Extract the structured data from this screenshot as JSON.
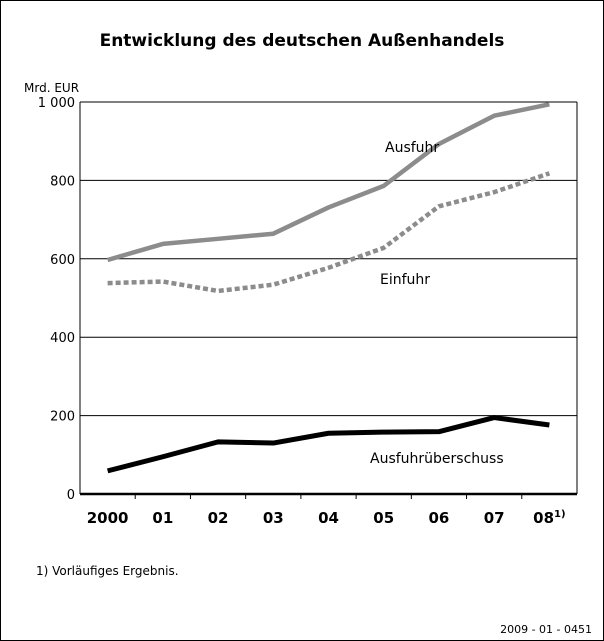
{
  "chart_data": {
    "type": "line",
    "title": "Entwicklung des deutschen Außenhandels",
    "y_axis_label": "Mrd. EUR",
    "categories": [
      "2000",
      "01",
      "02",
      "03",
      "04",
      "05",
      "06",
      "07",
      "08"
    ],
    "category_note": "1)",
    "series": [
      {
        "name": "Ausfuhr",
        "color": "#8c8c8c",
        "style": "solid",
        "values": [
          597,
          638,
          651,
          664,
          731,
          786,
          893,
          965,
          994
        ]
      },
      {
        "name": "Einfuhr",
        "color": "#8c8c8c",
        "style": "dotted",
        "values": [
          538,
          542,
          518,
          534,
          577,
          628,
          734,
          770,
          818
        ]
      },
      {
        "name": "Ausfuhrüberschuss",
        "color": "#000000",
        "style": "solid",
        "values": [
          59,
          95,
          133,
          130,
          155,
          158,
          159,
          195,
          176
        ]
      }
    ],
    "ylim": [
      0,
      1000
    ],
    "yticks": [
      0,
      200,
      400,
      600,
      800,
      {
        "value": 1000,
        "label": "1 000"
      }
    ],
    "grid": true,
    "footnote": "1) Vorläufiges Ergebnis.",
    "source": "2009 - 01 - 0451"
  }
}
